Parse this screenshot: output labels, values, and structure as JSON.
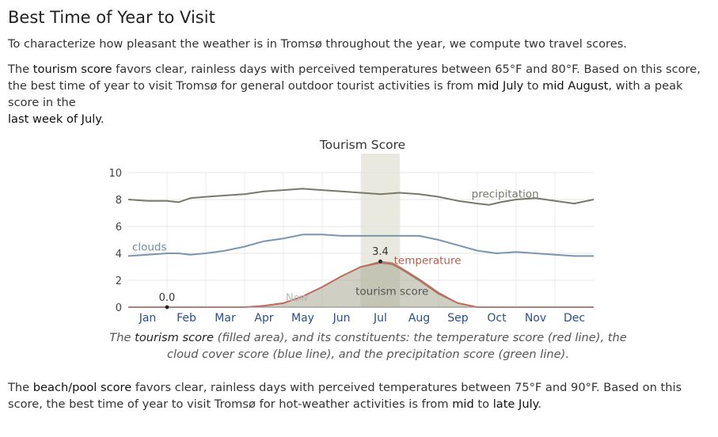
{
  "heading": "Best Time of Year to Visit",
  "intro": "To characterize how pleasant the weather is in Tromsø throughout the year, we compute two travel scores.",
  "tourism_para": {
    "t1": "The ",
    "b1": "tourism score",
    "t2": " favors clear, rainless days with perceived temperatures between 65°F and 80°F. Based on this score, the best time of year to visit Tromsø for general outdoor tourist activities is from ",
    "b2": "mid July",
    "t3": " to ",
    "b3": "mid August",
    "t4": ", with a peak score in the ",
    "b4": "last week of July",
    "t5": "."
  },
  "caption": {
    "t1": "The ",
    "b1": "tourism score",
    "t2": " (filled area), and its constituents: the temperature score (red line), the cloud cover score (blue line), and the precipitation score (green line)."
  },
  "beach_para": {
    "t1": "The ",
    "b1": "beach/pool score",
    "t2": " favors clear, rainless days with perceived temperatures between 75°F and 90°F. Based on this score, the best time of year to visit Tromsø for hot-weather activities is from ",
    "b2": "mid",
    "t3": " to ",
    "b3": "late July",
    "t4": "."
  },
  "chart_data": {
    "type": "area",
    "title": "Tourism Score",
    "x_unit": "month (1 = start of Jan, 13 = end of Dec)",
    "categories": [
      "Jan",
      "Feb",
      "Mar",
      "Apr",
      "May",
      "Jun",
      "Jul",
      "Aug",
      "Sep",
      "Oct",
      "Nov",
      "Dec"
    ],
    "ylim": [
      0,
      10
    ],
    "yticks": [
      0,
      2,
      4,
      6,
      8,
      10
    ],
    "highlight_band": [
      7.0,
      8.0
    ],
    "now_marker": {
      "x": 5.35,
      "label": "Now"
    },
    "annotations": [
      {
        "label": "0.0",
        "x": 2.0,
        "y": 0.0
      },
      {
        "label": "3.4",
        "x": 7.5,
        "y": 3.4
      }
    ],
    "series": [
      {
        "name": "precipitation",
        "kind": "line",
        "color": "#767a69",
        "x": [
          1.0,
          1.5,
          2.0,
          2.3,
          2.6,
          3.0,
          3.5,
          4.0,
          4.5,
          5.0,
          5.5,
          6.0,
          6.5,
          7.0,
          7.5,
          8.0,
          8.5,
          9.0,
          9.5,
          10.0,
          10.3,
          10.6,
          11.0,
          11.5,
          12.0,
          12.5,
          13.0
        ],
        "values": [
          8.0,
          7.9,
          7.9,
          7.8,
          8.1,
          8.2,
          8.3,
          8.4,
          8.6,
          8.7,
          8.8,
          8.7,
          8.6,
          8.5,
          8.4,
          8.5,
          8.4,
          8.2,
          7.9,
          7.7,
          7.6,
          7.8,
          8.0,
          8.1,
          7.9,
          7.7,
          8.0
        ]
      },
      {
        "name": "clouds",
        "kind": "line",
        "color": "#7a95b0",
        "x": [
          1.0,
          1.5,
          2.0,
          2.3,
          2.6,
          3.0,
          3.5,
          4.0,
          4.5,
          5.0,
          5.5,
          6.0,
          6.5,
          7.0,
          7.5,
          8.0,
          8.5,
          9.0,
          9.5,
          10.0,
          10.5,
          11.0,
          11.5,
          12.0,
          12.5,
          13.0
        ],
        "values": [
          3.8,
          3.9,
          4.0,
          4.0,
          3.9,
          4.0,
          4.2,
          4.5,
          4.9,
          5.1,
          5.4,
          5.4,
          5.3,
          5.3,
          5.3,
          5.3,
          5.3,
          5.0,
          4.6,
          4.2,
          4.0,
          4.1,
          4.0,
          3.9,
          3.8,
          3.8
        ]
      },
      {
        "name": "temperature",
        "kind": "line",
        "color": "#c06a5c",
        "x": [
          1.0,
          2.0,
          3.0,
          4.0,
          4.5,
          5.0,
          5.5,
          6.0,
          6.5,
          7.0,
          7.5,
          7.8,
          8.0,
          8.5,
          9.0,
          9.5,
          10.0,
          11.0,
          12.0,
          13.0
        ],
        "values": [
          0,
          0,
          0,
          0,
          0.1,
          0.3,
          0.8,
          1.5,
          2.3,
          3.0,
          3.3,
          3.2,
          2.9,
          2.0,
          1.0,
          0.3,
          0,
          0,
          0,
          0
        ]
      },
      {
        "name": "tourism score",
        "kind": "area",
        "color": "#a8a891",
        "x": [
          1.0,
          2.0,
          3.0,
          4.0,
          4.5,
          5.0,
          5.5,
          6.0,
          6.5,
          7.0,
          7.5,
          7.8,
          8.0,
          8.5,
          9.0,
          9.5,
          10.0,
          11.0,
          12.0,
          13.0
        ],
        "values": [
          0,
          0,
          0,
          0,
          0.1,
          0.3,
          0.8,
          1.5,
          2.3,
          3.0,
          3.4,
          3.3,
          3.0,
          2.1,
          1.1,
          0.3,
          0,
          0,
          0,
          0
        ]
      }
    ]
  }
}
